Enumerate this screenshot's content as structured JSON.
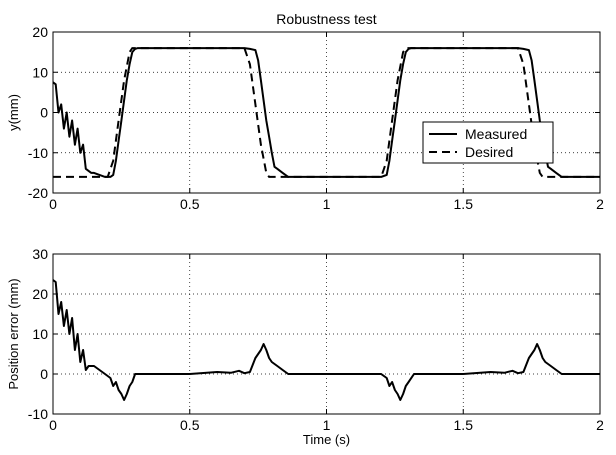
{
  "chart_data": [
    {
      "type": "line",
      "title": "Robustness test",
      "xlabel": "",
      "ylabel": "y(mm)",
      "xlim": [
        0,
        2
      ],
      "ylim": [
        -20,
        20
      ],
      "xticks": [
        0,
        0.5,
        1,
        1.5,
        2
      ],
      "xtick_labels": [
        "0",
        "0.5",
        "1",
        "1.5",
        "2"
      ],
      "yticks": [
        -20,
        -10,
        0,
        10,
        20
      ],
      "ytick_labels": [
        "-20",
        "-10",
        "0",
        "10",
        "20"
      ],
      "grid": true,
      "legend": {
        "placement": "right-middle",
        "entries": [
          "Measured",
          "Desired"
        ]
      },
      "series": [
        {
          "name": "Measured",
          "style": "solid",
          "x": [
            0,
            0.01,
            0.02,
            0.03,
            0.04,
            0.05,
            0.06,
            0.07,
            0.08,
            0.09,
            0.1,
            0.11,
            0.12,
            0.13,
            0.14,
            0.15,
            0.17,
            0.19,
            0.21,
            0.22,
            0.23,
            0.24,
            0.25,
            0.26,
            0.27,
            0.28,
            0.29,
            0.3,
            0.31,
            0.33,
            0.5,
            0.7,
            0.72,
            0.74,
            0.75,
            0.76,
            0.77,
            0.78,
            0.79,
            0.8,
            0.81,
            0.82,
            0.84,
            0.86,
            0.88,
            0.9,
            1.0,
            1.2,
            1.22,
            1.23,
            1.24,
            1.25,
            1.26,
            1.27,
            1.28,
            1.29,
            1.3,
            1.31,
            1.33,
            1.5,
            1.7,
            1.72,
            1.74,
            1.75,
            1.76,
            1.77,
            1.78,
            1.79,
            1.8,
            1.81,
            1.82,
            1.84,
            1.86,
            1.88,
            1.9,
            2.0
          ],
          "values": [
            7.5,
            7,
            0,
            2,
            -4,
            0,
            -6,
            -2,
            -8,
            -4,
            -10,
            -8,
            -14,
            -14.5,
            -15,
            -15,
            -15.5,
            -16,
            -16,
            -15.5,
            -12,
            -7,
            -2,
            3,
            8,
            12,
            15,
            15.8,
            16,
            16,
            16,
            16,
            15.8,
            15.5,
            13,
            8,
            3,
            -2,
            -6,
            -10,
            -13.5,
            -14,
            -15,
            -16,
            -16,
            -16,
            -16,
            -16,
            -15.5,
            -12,
            -7,
            -2,
            3,
            8,
            12,
            15,
            15.8,
            16,
            16,
            16,
            16,
            15.8,
            15.5,
            13,
            8,
            3,
            -2,
            -6,
            -10,
            -13.5,
            -14,
            -15,
            -16,
            -16,
            -16,
            -16
          ]
        },
        {
          "name": "Desired",
          "style": "dashed",
          "x": [
            0,
            0.2,
            0.22,
            0.24,
            0.26,
            0.28,
            0.29,
            0.5,
            0.7,
            0.72,
            0.74,
            0.76,
            0.78,
            0.79,
            1.0,
            1.2,
            1.22,
            1.24,
            1.26,
            1.28,
            1.29,
            1.5,
            1.7,
            1.72,
            1.74,
            1.76,
            1.78,
            1.79,
            2.0
          ],
          "values": [
            -16,
            -16,
            -12,
            -2,
            8,
            15,
            16,
            16,
            16,
            12,
            2,
            -8,
            -15,
            -16,
            -16,
            -16,
            -12,
            -2,
            8,
            15,
            16,
            16,
            16,
            12,
            2,
            -8,
            -15,
            -16,
            -16
          ]
        }
      ]
    },
    {
      "type": "line",
      "title": "",
      "xlabel": "Time (s)",
      "ylabel": "Position error (mm)",
      "xlim": [
        0,
        2
      ],
      "ylim": [
        -10,
        30
      ],
      "xticks": [
        0,
        0.5,
        1,
        1.5,
        2
      ],
      "xtick_labels": [
        "0",
        "0.5",
        "1",
        "1.5",
        "2"
      ],
      "yticks": [
        -10,
        0,
        10,
        20,
        30
      ],
      "ytick_labels": [
        "-10",
        "0",
        "10",
        "20",
        "30"
      ],
      "grid": true,
      "series": [
        {
          "style": "solid",
          "x": [
            0,
            0.01,
            0.02,
            0.03,
            0.04,
            0.05,
            0.06,
            0.07,
            0.08,
            0.09,
            0.1,
            0.11,
            0.12,
            0.13,
            0.15,
            0.17,
            0.19,
            0.21,
            0.22,
            0.23,
            0.24,
            0.25,
            0.26,
            0.27,
            0.28,
            0.29,
            0.3,
            0.32,
            0.5,
            0.6,
            0.65,
            0.68,
            0.7,
            0.72,
            0.74,
            0.76,
            0.77,
            0.78,
            0.79,
            0.8,
            0.82,
            0.84,
            0.86,
            0.88,
            0.9,
            1.0,
            1.2,
            1.22,
            1.23,
            1.24,
            1.25,
            1.26,
            1.27,
            1.28,
            1.29,
            1.3,
            1.32,
            1.5,
            1.6,
            1.65,
            1.68,
            1.7,
            1.72,
            1.74,
            1.76,
            1.77,
            1.78,
            1.79,
            1.8,
            1.82,
            1.84,
            1.86,
            1.88,
            1.9,
            2.0
          ],
          "values": [
            23.5,
            23,
            15,
            18,
            12,
            16,
            10,
            14,
            6,
            10,
            3,
            6,
            1,
            2,
            2,
            1,
            0,
            -1,
            -3,
            -2,
            -4,
            -5,
            -6.5,
            -5,
            -3,
            -2,
            0,
            0,
            0,
            0.5,
            0.3,
            0.8,
            0.2,
            0.5,
            4,
            6,
            7.5,
            6,
            4,
            3,
            2,
            1,
            0,
            0,
            0,
            0,
            0,
            -1,
            -3,
            -2,
            -4,
            -5,
            -6.5,
            -5,
            -3,
            -2,
            0,
            0,
            0.5,
            0.3,
            0.8,
            0.2,
            0.5,
            4,
            6,
            7.5,
            6,
            4,
            3,
            2,
            1,
            0,
            0,
            0,
            0
          ]
        }
      ]
    }
  ]
}
